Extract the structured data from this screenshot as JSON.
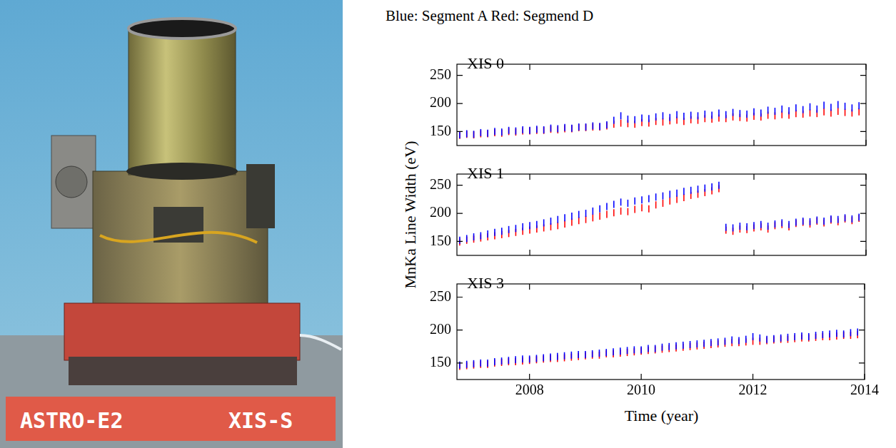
{
  "photo": {
    "labels": [
      "ASTRO-E2",
      "XIS-S"
    ]
  },
  "figure": {
    "title": "Blue: Segment A Red: Segmend D",
    "y_label": "MnKa Line Width (eV)",
    "x_label": "Time (year)"
  },
  "chart_data": [
    {
      "type": "scatter",
      "title": "XIS 0",
      "tick_labels": "y",
      "grid": false,
      "xlim": [
        2006.7,
        2014
      ],
      "xticks": [
        2008,
        2010,
        2012,
        2014
      ],
      "ylim": [
        125,
        270
      ],
      "yticks": [
        150,
        200,
        250
      ],
      "x": [
        2006.75,
        2006.875,
        2007,
        2007.125,
        2007.25,
        2007.375,
        2007.5,
        2007.625,
        2007.75,
        2007.875,
        2008,
        2008.125,
        2008.25,
        2008.375,
        2008.5,
        2008.625,
        2008.75,
        2008.875,
        2009,
        2009.125,
        2009.25,
        2009.375,
        2009.5,
        2009.625,
        2009.75,
        2009.875,
        2010,
        2010.125,
        2010.25,
        2010.375,
        2010.5,
        2010.625,
        2010.75,
        2010.875,
        2011,
        2011.125,
        2011.25,
        2011.375,
        2011.5,
        2011.625,
        2011.75,
        2011.875,
        2012,
        2012.125,
        2012.25,
        2012.375,
        2012.5,
        2012.625,
        2012.75,
        2012.875,
        2013,
        2013.125,
        2013.25,
        2013.375,
        2013.5,
        2013.625,
        2013.75,
        2013.875
      ],
      "series": [
        {
          "name": "Segment A",
          "color": "#0000ff",
          "marker": "vline",
          "line_style": "none",
          "values": [
            144,
            146,
            145,
            148,
            147,
            150,
            149,
            152,
            151,
            153,
            152,
            154,
            153,
            156,
            155,
            157,
            156,
            158,
            158,
            160,
            159,
            162,
            170,
            178,
            172,
            171,
            174,
            173,
            176,
            178,
            175,
            180,
            177,
            179,
            178,
            181,
            179,
            183,
            180,
            184,
            182,
            181,
            185,
            183,
            188,
            186,
            190,
            187,
            192,
            189,
            194,
            190,
            197,
            193,
            198,
            195,
            192,
            196
          ]
        },
        {
          "name": "Segmend D",
          "color": "#ff0000",
          "marker": "vline",
          "line_style": "none",
          "values": [
            143,
            145,
            144,
            146,
            146,
            148,
            147,
            150,
            149,
            151,
            151,
            152,
            152,
            154,
            153,
            155,
            155,
            157,
            157,
            158,
            158,
            160,
            163,
            165,
            164,
            163,
            166,
            165,
            168,
            167,
            169,
            170,
            168,
            171,
            170,
            173,
            172,
            174,
            173,
            176,
            175,
            174,
            177,
            176,
            179,
            178,
            180,
            179,
            182,
            181,
            183,
            182,
            185,
            183,
            186,
            184,
            183,
            185
          ]
        }
      ]
    },
    {
      "type": "scatter",
      "title": "XIS 1",
      "tick_labels": "y",
      "grid": false,
      "xlim": [
        2006.7,
        2014
      ],
      "xticks": [
        2008,
        2010,
        2012,
        2014
      ],
      "ylim": [
        125,
        270
      ],
      "yticks": [
        150,
        200,
        250
      ],
      "x": [
        2006.75,
        2006.875,
        2007,
        2007.125,
        2007.25,
        2007.375,
        2007.5,
        2007.625,
        2007.75,
        2007.875,
        2008,
        2008.125,
        2008.25,
        2008.375,
        2008.5,
        2008.625,
        2008.75,
        2008.875,
        2009,
        2009.125,
        2009.25,
        2009.375,
        2009.5,
        2009.625,
        2009.75,
        2009.875,
        2010,
        2010.125,
        2010.25,
        2010.375,
        2010.5,
        2010.625,
        2010.75,
        2010.875,
        2011,
        2011.125,
        2011.25,
        2011.375,
        2011.5,
        2011.625,
        2011.75,
        2011.875,
        2012,
        2012.125,
        2012.25,
        2012.375,
        2012.5,
        2012.625,
        2012.75,
        2012.875,
        2013,
        2013.125,
        2013.25,
        2013.375,
        2013.5,
        2013.625,
        2013.75,
        2013.875
      ],
      "series": [
        {
          "name": "Segment A",
          "color": "#0000ff",
          "marker": "vline",
          "line_style": "none",
          "values": [
            152,
            155,
            158,
            160,
            163,
            166,
            168,
            171,
            173,
            176,
            178,
            180,
            183,
            186,
            189,
            192,
            195,
            198,
            200,
            204,
            208,
            212,
            216,
            220,
            218,
            222,
            224,
            226,
            229,
            231,
            234,
            236,
            239,
            241,
            243,
            245,
            247,
            250,
            175,
            174,
            177,
            176,
            178,
            180,
            177,
            181,
            183,
            180,
            184,
            186,
            185,
            188,
            186,
            190,
            189,
            192,
            190,
            193
          ]
        },
        {
          "name": "Segmend D",
          "color": "#ff0000",
          "marker": "vline",
          "line_style": "none",
          "values": [
            149,
            152,
            154,
            156,
            158,
            160,
            162,
            164,
            166,
            168,
            170,
            172,
            174,
            176,
            178,
            181,
            184,
            187,
            189,
            192,
            195,
            198,
            201,
            204,
            203,
            207,
            210,
            208,
            215,
            218,
            222,
            225,
            228,
            232,
            234,
            237,
            240,
            244,
            170,
            168,
            172,
            171,
            174,
            176,
            172,
            178,
            180,
            176,
            182,
            184,
            181,
            186,
            183,
            188,
            185,
            190,
            187,
            191
          ]
        }
      ]
    },
    {
      "type": "scatter",
      "title": "XIS 3",
      "grid": false,
      "xlim": [
        2006.7,
        2014
      ],
      "xticks": [
        2008,
        2010,
        2012,
        2014
      ],
      "ylim": [
        125,
        270
      ],
      "yticks": [
        150,
        200,
        250
      ],
      "x": [
        2006.75,
        2006.875,
        2007,
        2007.125,
        2007.25,
        2007.375,
        2007.5,
        2007.625,
        2007.75,
        2007.875,
        2008,
        2008.125,
        2008.25,
        2008.375,
        2008.5,
        2008.625,
        2008.75,
        2008.875,
        2009,
        2009.125,
        2009.25,
        2009.375,
        2009.5,
        2009.625,
        2009.75,
        2009.875,
        2010,
        2010.125,
        2010.25,
        2010.375,
        2010.5,
        2010.625,
        2010.75,
        2010.875,
        2011,
        2011.125,
        2011.25,
        2011.375,
        2011.5,
        2011.625,
        2011.75,
        2011.875,
        2012,
        2012.125,
        2012.25,
        2012.375,
        2012.5,
        2012.625,
        2012.75,
        2012.875,
        2013,
        2013.125,
        2013.25,
        2013.375,
        2013.5,
        2013.625,
        2013.75,
        2013.875
      ],
      "series": [
        {
          "name": "Segment A",
          "color": "#0000ff",
          "marker": "vline",
          "line_style": "none",
          "values": [
            147,
            148,
            149,
            150,
            150,
            152,
            153,
            154,
            155,
            156,
            156,
            157,
            158,
            159,
            160,
            161,
            162,
            163,
            163,
            164,
            165,
            166,
            167,
            168,
            169,
            170,
            170,
            172,
            172,
            174,
            175,
            176,
            177,
            178,
            179,
            180,
            181,
            182,
            183,
            185,
            184,
            186,
            190,
            188,
            186,
            187,
            188,
            189,
            190,
            191,
            190,
            192,
            193,
            194,
            195,
            194,
            196,
            197
          ]
        },
        {
          "name": "Segmend D",
          "color": "#ff0000",
          "marker": "vline",
          "line_style": "none",
          "values": [
            145,
            146,
            147,
            148,
            148,
            150,
            151,
            152,
            152,
            153,
            154,
            155,
            156,
            157,
            157,
            158,
            159,
            160,
            161,
            162,
            162,
            164,
            164,
            165,
            166,
            167,
            168,
            169,
            170,
            171,
            172,
            173,
            174,
            175,
            176,
            177,
            178,
            179,
            180,
            181,
            181,
            182,
            183,
            183,
            184,
            185,
            186,
            186,
            187,
            188,
            188,
            189,
            190,
            190,
            191,
            192,
            192,
            193
          ]
        }
      ]
    }
  ]
}
